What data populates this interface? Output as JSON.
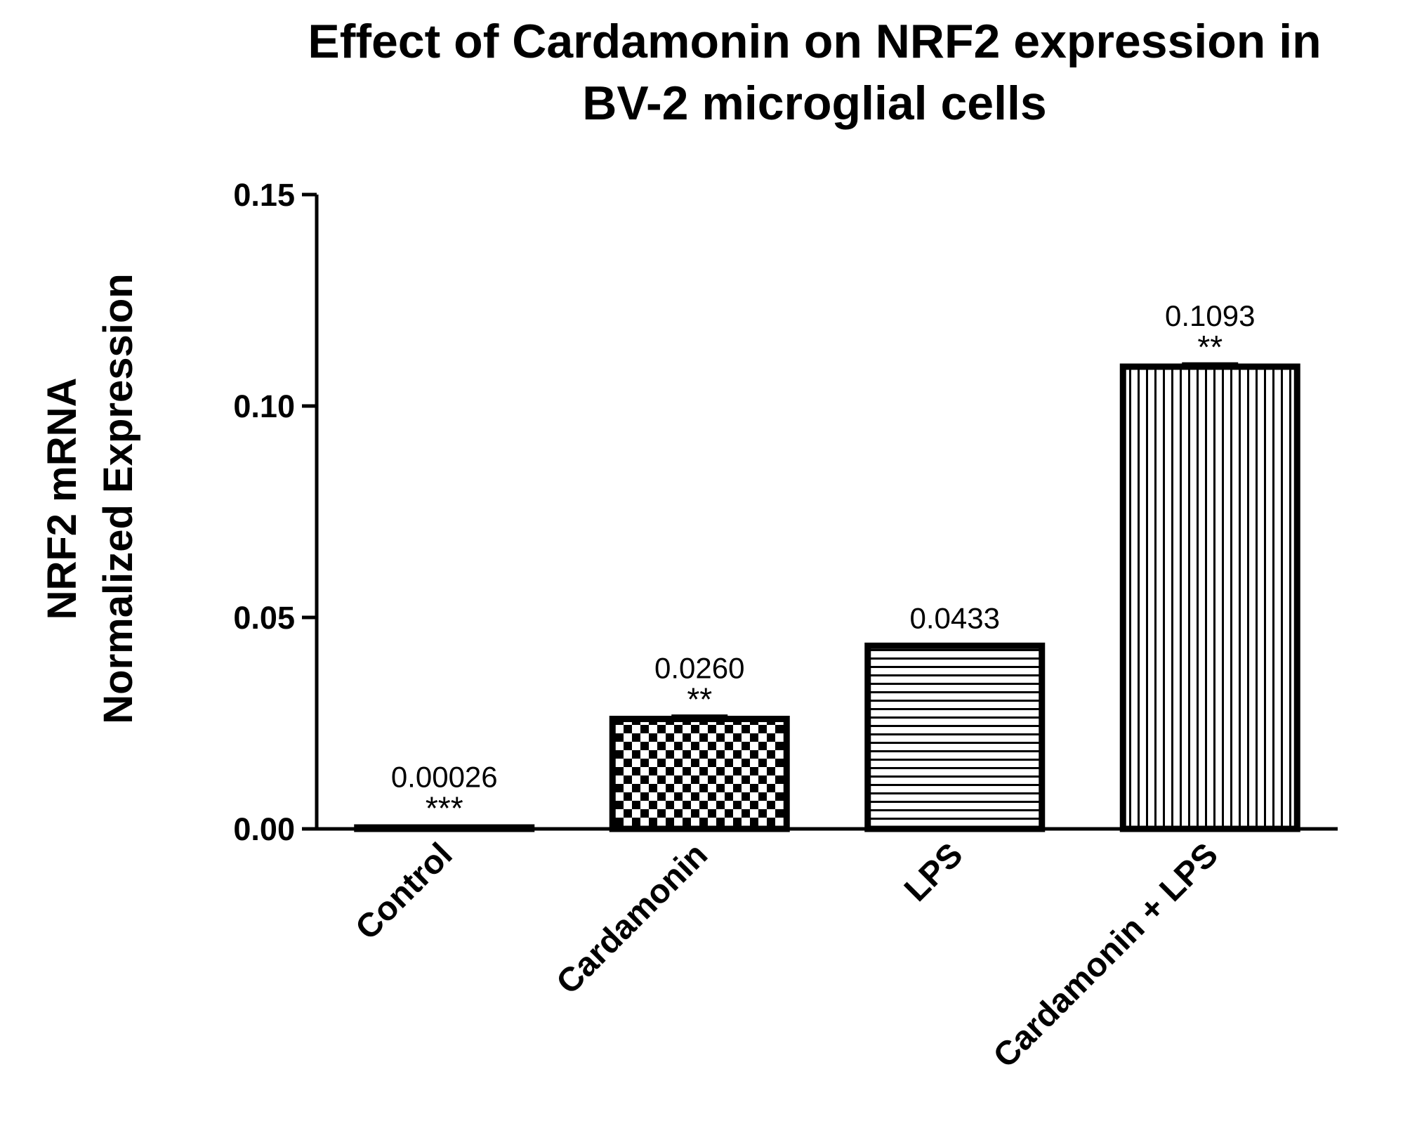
{
  "chart_data": {
    "type": "bar",
    "title_lines": [
      "Effect of Cardamonin on NRF2 expression in",
      "BV-2 microglial cells"
    ],
    "ylabel_lines": [
      "NRF2 mRNA",
      "Normalized Expression"
    ],
    "xlabel": "",
    "categories": [
      "Control",
      "Cardamonin",
      "LPS",
      "Cardamonin + LPS"
    ],
    "values": [
      0.00026,
      0.026,
      0.0433,
      0.1093
    ],
    "value_labels": [
      "0.00026",
      "0.0260",
      "0.0433",
      "0.1093"
    ],
    "significance": [
      "***",
      "**",
      "",
      "**"
    ],
    "patterns": [
      "solid",
      "checker",
      "horizontal-lines",
      "vertical-lines"
    ],
    "error_bars": [
      0.0001,
      0.0008,
      0.0003,
      0.0008
    ],
    "yticks": [
      "0.00",
      "0.05",
      "0.10",
      "0.15"
    ],
    "ylim": [
      0,
      0.15
    ],
    "grid": false,
    "colors": {
      "bar_fill": "#ffffff",
      "stroke": "#000000",
      "background": "#ffffff"
    }
  }
}
